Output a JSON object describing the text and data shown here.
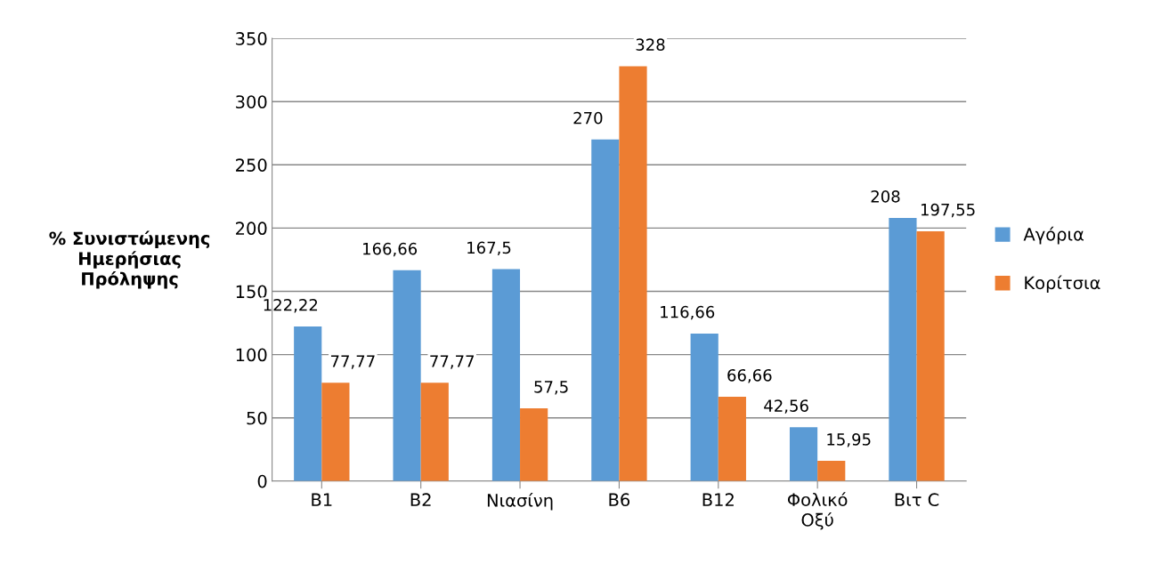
{
  "chart_data": {
    "type": "bar",
    "ylabel": "% Συνιστώμενης\nΗμερήσιας\nΠρόληψης",
    "categories": [
      "B1",
      "B2",
      "Νιασίνη",
      "B6",
      "B12",
      "Φολικό\nΟξύ",
      "Βιτ C"
    ],
    "series": [
      {
        "name": "Αγόρια",
        "color": "#5b9bd5",
        "values": [
          122.22,
          166.66,
          167.5,
          270,
          116.66,
          42.56,
          208
        ],
        "value_labels": [
          "122,22",
          "166,66",
          "167,5",
          "270",
          "116,66",
          "42,56",
          "208"
        ]
      },
      {
        "name": "Κορίτσια",
        "color": "#ed7d31",
        "values": [
          77.77,
          77.77,
          57.5,
          328,
          66.66,
          15.95,
          197.55
        ],
        "value_labels": [
          "77,77",
          "77,77",
          "57,5",
          "328",
          "66,66",
          "15,95",
          "197,55"
        ]
      }
    ],
    "ylim": [
      0,
      350
    ],
    "yticks": [
      0,
      50,
      100,
      150,
      200,
      250,
      300,
      350
    ],
    "grid": "y",
    "legend": "right"
  }
}
